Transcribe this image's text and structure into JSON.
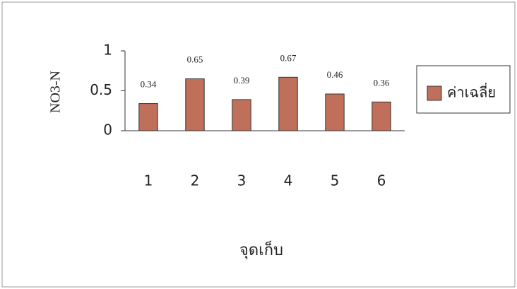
{
  "chart_data": {
    "type": "bar",
    "y_label": "NO3-N",
    "x_label": "จุดเก็บ",
    "categories": [
      "1",
      "2",
      "3",
      "4",
      "5",
      "6"
    ],
    "series": [
      {
        "name": "ค่าเฉลี่ย",
        "color": "#c0705a",
        "values": [
          0.34,
          0.65,
          0.39,
          0.67,
          0.46,
          0.36
        ]
      }
    ],
    "ylim": [
      0,
      1
    ],
    "yticks": [
      0,
      0.5,
      1
    ],
    "legend": "right"
  }
}
